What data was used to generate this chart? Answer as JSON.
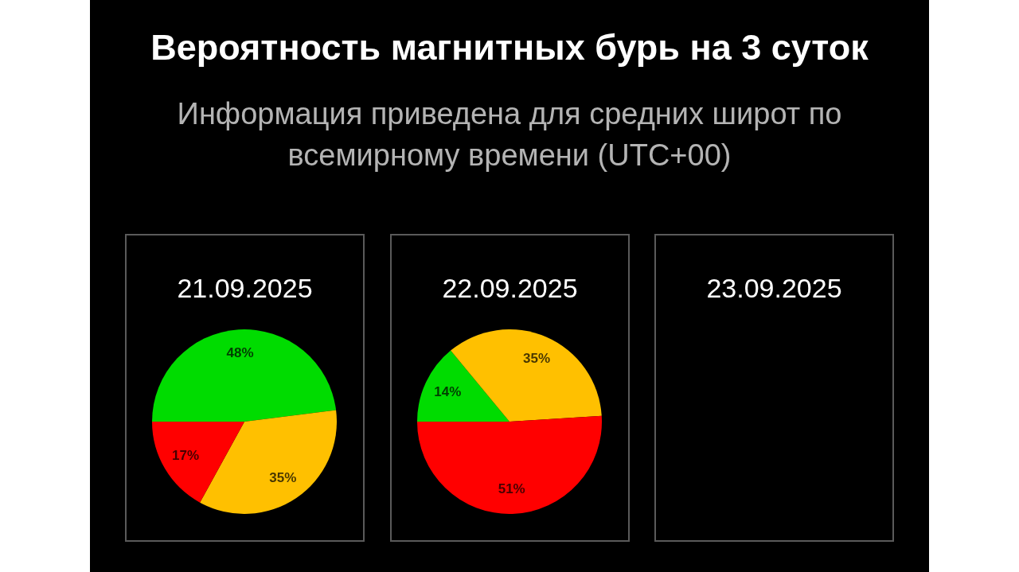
{
  "chart_data": [
    {
      "type": "other",
      "title": "Вероятность магнитных бурь на 3 суток",
      "subtitle": "Информация приведена для средних широт по всемирному времени (UTC+00)"
    },
    {
      "type": "pie",
      "title": "21.09.2025",
      "categories": [
        null,
        null,
        null
      ],
      "values": [
        48,
        35,
        17
      ],
      "colors": [
        "#00dc00",
        "#ffc000",
        "#ff0000"
      ],
      "value_labels": [
        "48%",
        "35%",
        "17%"
      ]
    },
    {
      "type": "pie",
      "title": "22.09.2025",
      "categories": [
        null,
        null,
        null
      ],
      "values": [
        14,
        35,
        51
      ],
      "colors": [
        "#00dc00",
        "#ffc000",
        "#ff0000"
      ],
      "value_labels": [
        "14%",
        "35%",
        "51%"
      ]
    },
    {
      "type": "other",
      "title": "23.09.2025"
    }
  ]
}
